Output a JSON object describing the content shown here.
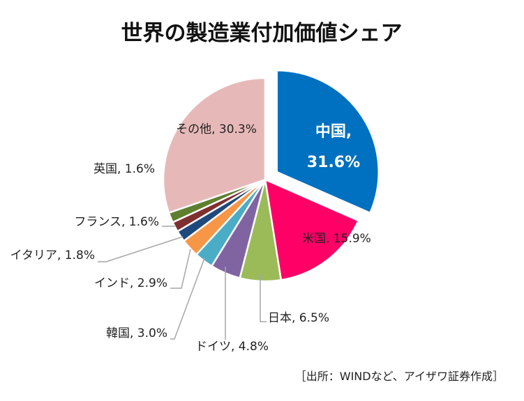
{
  "chart_data": {
    "type": "pie",
    "title": "世界の製造業付加価値シェア",
    "source": "［出所：WINDなど、アイザワ証券作成］",
    "slices": [
      {
        "label": "中国",
        "value": 31.6,
        "display": "31.6%",
        "color": "#0070C0",
        "exploded": true
      },
      {
        "label": "米国",
        "value": 15.9,
        "display": "15.9%",
        "color": "#FF0066"
      },
      {
        "label": "日本",
        "value": 6.5,
        "display": "6.5%",
        "color": "#9BBB59"
      },
      {
        "label": "ドイツ",
        "value": 4.8,
        "display": "4.8%",
        "color": "#8064A2"
      },
      {
        "label": "韓国",
        "value": 3.0,
        "display": "3.0%",
        "color": "#4BACC6"
      },
      {
        "label": "インド",
        "value": 2.9,
        "display": "2.9%",
        "color": "#F79646"
      },
      {
        "label": "イタリア",
        "value": 1.8,
        "display": "1.8%",
        "color": "#1F497D"
      },
      {
        "label": "フランス",
        "value": 1.6,
        "display": "1.6%",
        "color": "#7F2F2F"
      },
      {
        "label": "英国",
        "value": 1.6,
        "display": "1.6%",
        "color": "#5E7F2F"
      },
      {
        "label": "その他",
        "value": 30.3,
        "display": "30.3%",
        "color": "#E6B9B8"
      }
    ]
  }
}
